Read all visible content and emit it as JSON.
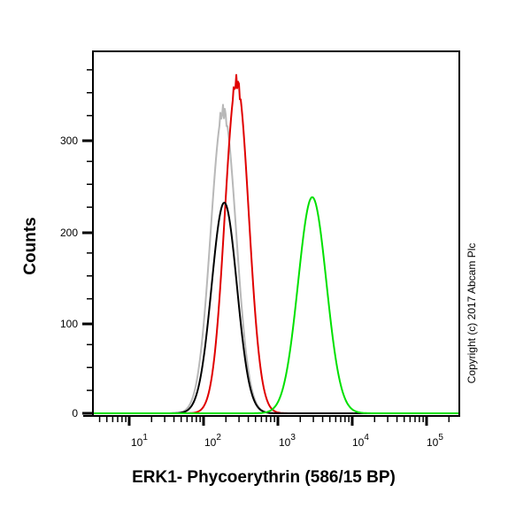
{
  "chart_data": {
    "type": "line",
    "title": "",
    "xlabel": "ERK1- Phycoerythrin (586/15 BP)",
    "ylabel": "Counts",
    "xscale": "log",
    "xlim": [
      3,
      150000
    ],
    "ylim": [
      0,
      390
    ],
    "x_ticks": [
      {
        "value": 10,
        "base": "10",
        "exp": "1"
      },
      {
        "value": 100,
        "base": "10",
        "exp": "2"
      },
      {
        "value": 1000,
        "base": "10",
        "exp": "3"
      },
      {
        "value": 10000,
        "base": "10",
        "exp": "4"
      },
      {
        "value": 100000,
        "base": "10",
        "exp": "5"
      }
    ],
    "y_ticks": [
      0,
      100,
      200,
      300
    ],
    "grid": false,
    "legend": null,
    "annotations": [
      "Copyright (c) 2017 Abcam Plc"
    ],
    "series": [
      {
        "name": "grey",
        "color": "#b8b8b8",
        "peak_x": 185,
        "peak_y": 330,
        "sigma_decades": 0.17,
        "points": [
          [
            40,
            0
          ],
          [
            70,
            15
          ],
          [
            100,
            80
          ],
          [
            130,
            200
          ],
          [
            160,
            300
          ],
          [
            185,
            330
          ],
          [
            200,
            325
          ],
          [
            230,
            260
          ],
          [
            280,
            120
          ],
          [
            350,
            30
          ],
          [
            500,
            0
          ]
        ]
      },
      {
        "name": "red",
        "color": "#e00000",
        "peak_x": 280,
        "peak_y": 362,
        "sigma_decades": 0.16,
        "points": [
          [
            60,
            0
          ],
          [
            100,
            20
          ],
          [
            150,
            110
          ],
          [
            200,
            260
          ],
          [
            240,
            340
          ],
          [
            280,
            362
          ],
          [
            320,
            300
          ],
          [
            380,
            160
          ],
          [
            480,
            40
          ],
          [
            700,
            0
          ]
        ]
      },
      {
        "name": "black",
        "color": "#000000",
        "peak_x": 190,
        "peak_y": 230,
        "sigma_decades": 0.17,
        "points": [
          [
            40,
            0
          ],
          [
            70,
            10
          ],
          [
            100,
            50
          ],
          [
            130,
            130
          ],
          [
            160,
            200
          ],
          [
            190,
            230
          ],
          [
            220,
            190
          ],
          [
            260,
            100
          ],
          [
            320,
            25
          ],
          [
            450,
            0
          ]
        ]
      },
      {
        "name": "green",
        "color": "#00e000",
        "peak_x": 2900,
        "peak_y": 236,
        "sigma_decades": 0.19,
        "points": [
          [
            700,
            0
          ],
          [
            1200,
            30
          ],
          [
            1700,
            110
          ],
          [
            2300,
            200
          ],
          [
            2900,
            236
          ],
          [
            3600,
            200
          ],
          [
            4800,
            100
          ],
          [
            6500,
            25
          ],
          [
            9000,
            0
          ]
        ]
      }
    ]
  },
  "labels": {
    "y_axis": "Counts",
    "x_axis": "ERK1- Phycoerythrin (586/15 BP)",
    "copyright": "Copyright (c) 2017 Abcam Plc",
    "y_tick_0": "0",
    "y_tick_100": "100",
    "y_tick_200": "200",
    "y_tick_300": "300",
    "x_tick_base": "10",
    "x_tick_1": "1",
    "x_tick_2": "2",
    "x_tick_3": "3",
    "x_tick_4": "4",
    "x_tick_5": "5"
  }
}
